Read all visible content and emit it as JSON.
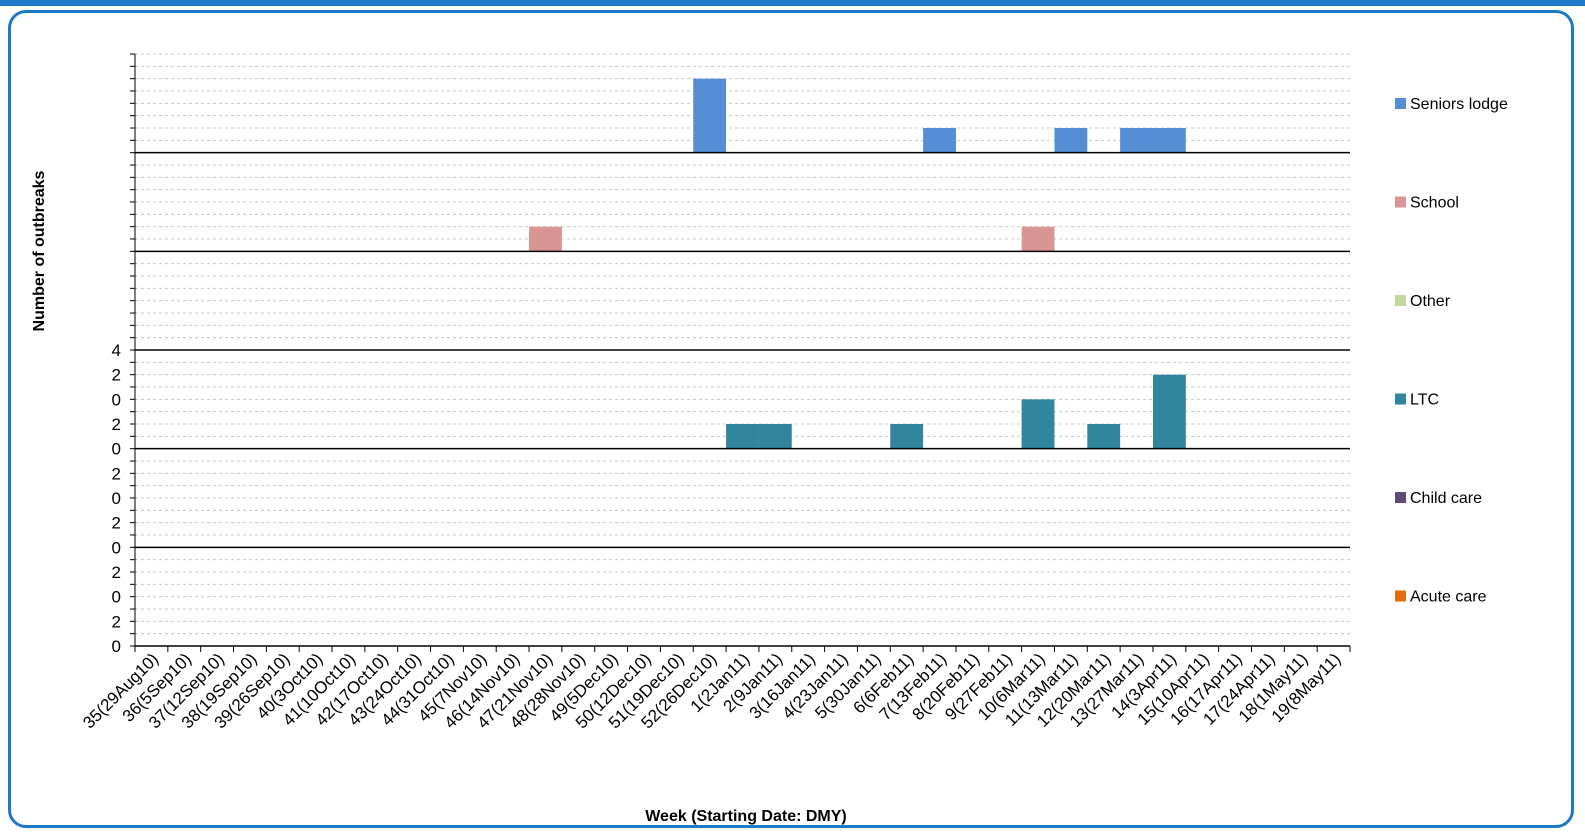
{
  "chart_data": {
    "type": "bar",
    "subtype": "stacked-panels",
    "xlabel": "Week (Starting Date: DMY)",
    "ylabel": "Number of outbreaks",
    "categories": [
      "35(29Aug10)",
      "36(5Sep10)",
      "37(12Sep10)",
      "38(19Sep10)",
      "39(26Sep10)",
      "40(3Oct10)",
      "41(10Oct10)",
      "42(17Oct10)",
      "43(24Oct10)",
      "44(31Oct10)",
      "45(7Nov10)",
      "46(14Nov10)",
      "47(21Nov10)",
      "48(28Nov10)",
      "49(5Dec10)",
      "50(12Dec10)",
      "51(19Dec10)",
      "52(26Dec10)",
      "1(2Jan11)",
      "2(9Jan11)",
      "3(16Jan11)",
      "4(23Jan11)",
      "5(30Jan11)",
      "6(6Feb11)",
      "7(13Feb11)",
      "8(20Feb11)",
      "9(27Feb11)",
      "10(6Mar11)",
      "11(13Mar11)",
      "12(20Mar11)",
      "13(27Mar11)",
      "14(3Apr11)",
      "15(10Apr11)",
      "16(17Apr11)",
      "17(24Apr11)",
      "18(1May11)",
      "19(8May11)"
    ],
    "panel_ylim": [
      0,
      4
    ],
    "panel_tick_labels": [
      "0",
      "2",
      "0",
      "2",
      "0",
      "2",
      "0",
      "2",
      "0",
      "2",
      "0",
      "2",
      "4"
    ],
    "grid": true,
    "legend_position": "right",
    "series": [
      {
        "name": "Seniors lodge",
        "color": "#558ed5",
        "values": [
          0,
          0,
          0,
          0,
          0,
          0,
          0,
          0,
          0,
          0,
          0,
          0,
          0,
          0,
          0,
          0,
          0,
          3,
          0,
          0,
          0,
          0,
          0,
          0,
          1,
          0,
          0,
          0,
          1,
          0,
          1,
          1,
          0,
          0,
          0,
          0,
          0
        ]
      },
      {
        "name": "School",
        "color": "#d99694",
        "values": [
          0,
          0,
          0,
          0,
          0,
          0,
          0,
          0,
          0,
          0,
          0,
          0,
          1,
          0,
          0,
          0,
          0,
          0,
          0,
          0,
          0,
          0,
          0,
          0,
          0,
          0,
          0,
          1,
          0,
          0,
          0,
          0,
          0,
          0,
          0,
          0,
          0
        ]
      },
      {
        "name": "Other",
        "color": "#c3d69b",
        "values": [
          0,
          0,
          0,
          0,
          0,
          0,
          0,
          0,
          0,
          0,
          0,
          0,
          0,
          0,
          0,
          0,
          0,
          0,
          0,
          0,
          0,
          0,
          0,
          0,
          0,
          0,
          0,
          0,
          0,
          0,
          0,
          0,
          0,
          0,
          0,
          0,
          0
        ]
      },
      {
        "name": "LTC",
        "color": "#31859c",
        "values": [
          0,
          0,
          0,
          0,
          0,
          0,
          0,
          0,
          0,
          0,
          0,
          0,
          0,
          0,
          0,
          0,
          0,
          0,
          1,
          1,
          0,
          0,
          0,
          1,
          0,
          0,
          0,
          2,
          0,
          1,
          0,
          3,
          0,
          0,
          0,
          0,
          0
        ]
      },
      {
        "name": "Child care",
        "color": "#604a7b",
        "values": [
          0,
          0,
          0,
          0,
          0,
          0,
          0,
          0,
          0,
          0,
          0,
          0,
          0,
          0,
          0,
          0,
          0,
          0,
          0,
          0,
          0,
          0,
          0,
          0,
          0,
          0,
          0,
          0,
          0,
          0,
          0,
          0,
          0,
          0,
          0,
          0,
          0
        ]
      },
      {
        "name": "Acute care",
        "color": "#e46c0a",
        "values": [
          0,
          0,
          0,
          0,
          0,
          0,
          0,
          0,
          0,
          0,
          0,
          0,
          0,
          0,
          0,
          0,
          0,
          0,
          0,
          0,
          0,
          0,
          0,
          0,
          0,
          0,
          0,
          0,
          0,
          0,
          0,
          0,
          0,
          0,
          0,
          0,
          0
        ]
      }
    ]
  }
}
